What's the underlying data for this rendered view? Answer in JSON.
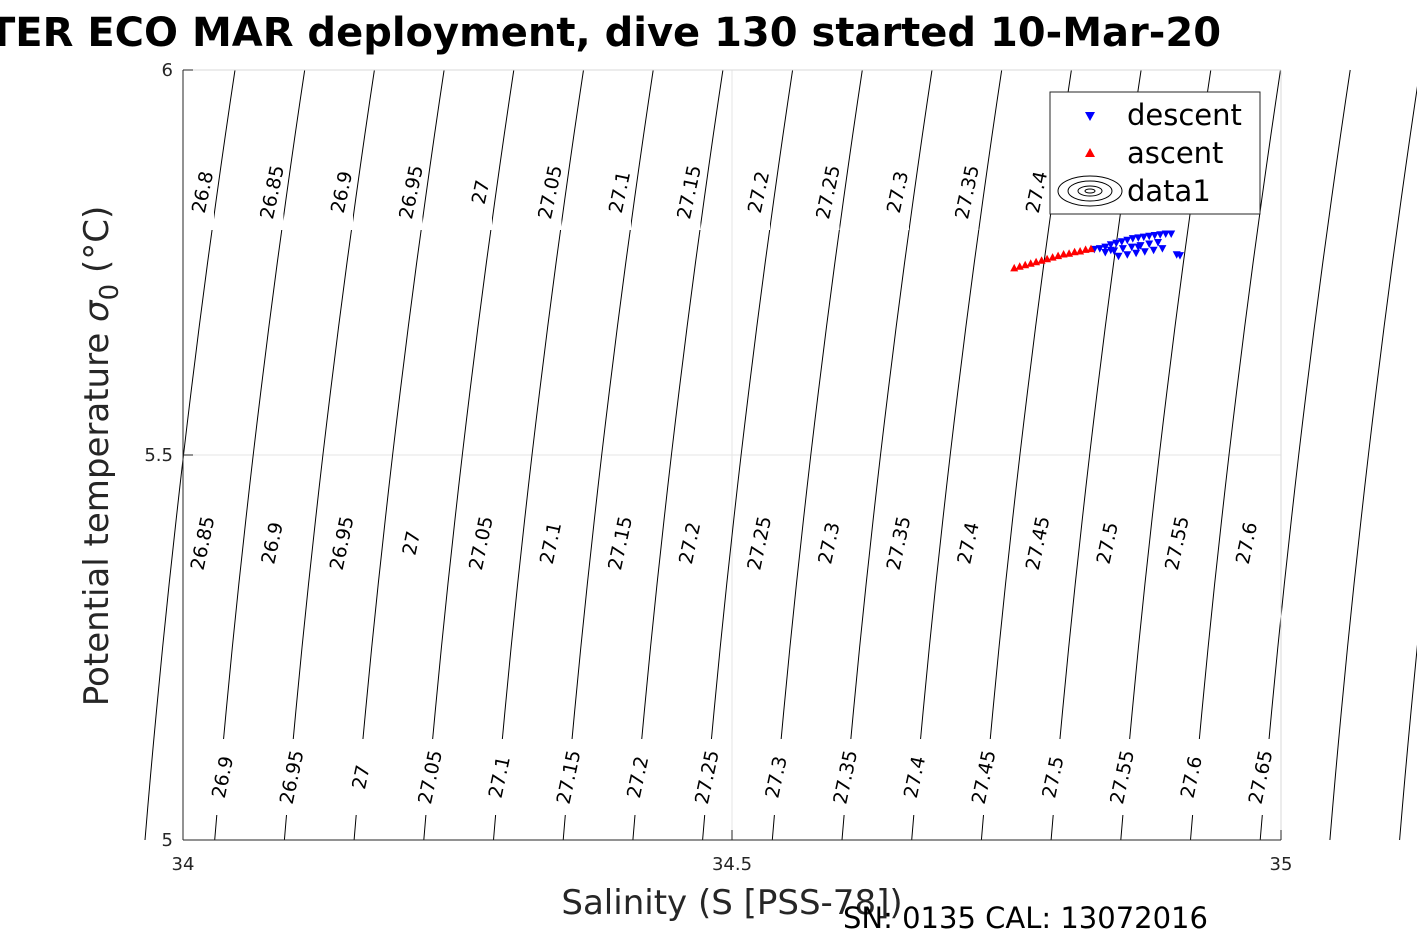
{
  "title": "TER ECO MAR deployment, dive 130 started 10-Mar-20",
  "footer": "SN: 0135  CAL: 13072016",
  "chart_data": {
    "type": "scatter",
    "xlabel": "Salinity (S [PSS-78])",
    "ylabel_main": "Potential temperature",
    "ylabel_symbol": "σ",
    "ylabel_subscript": "0",
    "ylabel_unit": "(°C)",
    "xlim": [
      34,
      35
    ],
    "ylim": [
      5,
      6
    ],
    "xticks": [
      "34",
      "34.5",
      "35"
    ],
    "yticks": [
      "5",
      "5.5",
      "6"
    ],
    "grid": true,
    "legend_position": "top-right",
    "legend": [
      "descent",
      "ascent",
      "data1"
    ],
    "series": [
      {
        "name": "descent",
        "marker": "triangle-down",
        "color": "#0000ff",
        "x": [
          34.83,
          34.835,
          34.84,
          34.845,
          34.85,
          34.855,
          34.86,
          34.865,
          34.87,
          34.875,
          34.88,
          34.885,
          34.89,
          34.895,
          34.9,
          34.84,
          34.848,
          34.856,
          34.864,
          34.872,
          34.88,
          34.888,
          34.852,
          34.86,
          34.868,
          34.876,
          34.884,
          34.892,
          34.905,
          34.908,
          34.845,
          34.87
        ],
        "y": [
          5.767,
          5.768,
          5.77,
          5.773,
          5.775,
          5.777,
          5.779,
          5.781,
          5.782,
          5.783,
          5.784,
          5.785,
          5.786,
          5.787,
          5.787,
          5.763,
          5.765,
          5.768,
          5.77,
          5.772,
          5.774,
          5.776,
          5.758,
          5.76,
          5.762,
          5.764,
          5.766,
          5.768,
          5.76,
          5.759,
          5.766,
          5.77
        ]
      },
      {
        "name": "ascent",
        "marker": "triangle-up",
        "color": "#ff0000",
        "x": [
          34.757,
          34.762,
          34.767,
          34.772,
          34.777,
          34.782,
          34.787,
          34.792,
          34.797,
          34.802,
          34.807,
          34.812,
          34.817,
          34.822,
          34.827
        ],
        "y": [
          5.743,
          5.745,
          5.747,
          5.749,
          5.751,
          5.753,
          5.755,
          5.757,
          5.759,
          5.761,
          5.762,
          5.764,
          5.765,
          5.767,
          5.768
        ]
      }
    ],
    "contour_label_text": [
      "26.8",
      "26.85",
      "26.9",
      "26.95",
      "27",
      "27.05",
      "27.1",
      "27.15",
      "27.2",
      "27.25",
      "27.3",
      "27.35",
      "27.4",
      "27.45",
      "27.5",
      "27.55",
      "27.6",
      "27.65"
    ]
  }
}
